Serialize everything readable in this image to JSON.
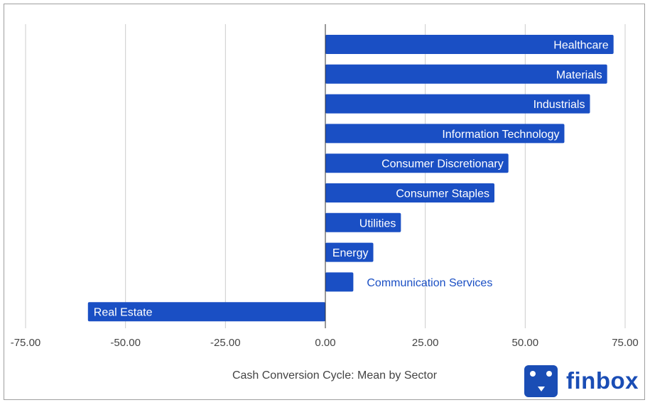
{
  "chart_data": {
    "type": "bar",
    "orientation": "horizontal",
    "title": "Cash Conversion Cycle: Mean by Sector",
    "xlim": [
      -75,
      75
    ],
    "ticks": [
      "-75.00",
      "-50.00",
      "-25.00",
      "0.00",
      "25.00",
      "50.00",
      "75.00"
    ],
    "tick_values": [
      -75,
      -50,
      -25,
      0,
      25,
      50,
      75
    ],
    "grid": true,
    "bar_color": "#1a4fc4",
    "categories": [
      "Healthcare",
      "Materials",
      "Industrials",
      "Information Technology",
      "Consumer Discretionary",
      "Consumer Staples",
      "Utilities",
      "Energy",
      "Communication Services",
      "Real Estate"
    ],
    "values": [
      72.1,
      70.5,
      66.2,
      59.8,
      45.8,
      42.3,
      18.9,
      12.0,
      7.0,
      -59.4
    ]
  },
  "brand": {
    "name": "finbox",
    "color": "#1a4db5",
    "icon": "finbox-robot-icon"
  }
}
